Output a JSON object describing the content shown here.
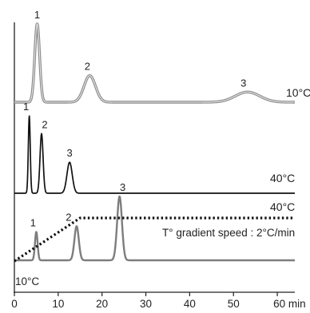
{
  "chart_data": {
    "type": "line",
    "xlim": [
      0,
      64
    ],
    "x_ticks": [
      0,
      10,
      20,
      30,
      40,
      50,
      60
    ],
    "x_tick_labels": [
      "0",
      "10",
      "20",
      "30",
      "40",
      "50",
      "60 min"
    ],
    "grid": false,
    "legend": "none",
    "traces": [
      {
        "id": "top",
        "label": "10°C",
        "color": "#8a8a8a",
        "width": 3.4,
        "baseline": 0.0,
        "peaks": [
          {
            "label": "1",
            "time": 5.2,
            "height": 1.0,
            "width": 0.55
          },
          {
            "label": "2",
            "time": 17.2,
            "height": 0.34,
            "width": 1.3
          },
          {
            "label": "3",
            "time": 53.2,
            "height": 0.13,
            "width": 2.8
          }
        ]
      },
      {
        "id": "middle",
        "label": "40°C",
        "color": "#111111",
        "width": 1.7,
        "baseline": 0.0,
        "peaks": [
          {
            "label": "1",
            "time": 3.4,
            "height": 1.0,
            "width": 0.22
          },
          {
            "label": "2",
            "time": 6.2,
            "height": 0.77,
            "width": 0.35
          },
          {
            "label": "3",
            "time": 12.6,
            "height": 0.4,
            "width": 0.6
          }
        ]
      },
      {
        "id": "bottom",
        "label": "",
        "color": "#7d7d7d",
        "width": 2.4,
        "baseline": 0.0,
        "peaks": [
          {
            "label": "1",
            "time": 5.0,
            "height": 0.4,
            "width": 0.3
          },
          {
            "label": "2",
            "time": 14.2,
            "height": 0.48,
            "width": 0.5
          },
          {
            "label": "3",
            "time": 24.0,
            "height": 0.9,
            "width": 0.55
          }
        ]
      }
    ],
    "temperature_gradient": {
      "label": "T° gradient speed : 2°C/min",
      "start_label": "10°C",
      "end_label": "40°C",
      "points": [
        {
          "time": 0,
          "temp": 10
        },
        {
          "time": 15,
          "temp": 40
        },
        {
          "time": 64,
          "temp": 40
        }
      ]
    }
  }
}
